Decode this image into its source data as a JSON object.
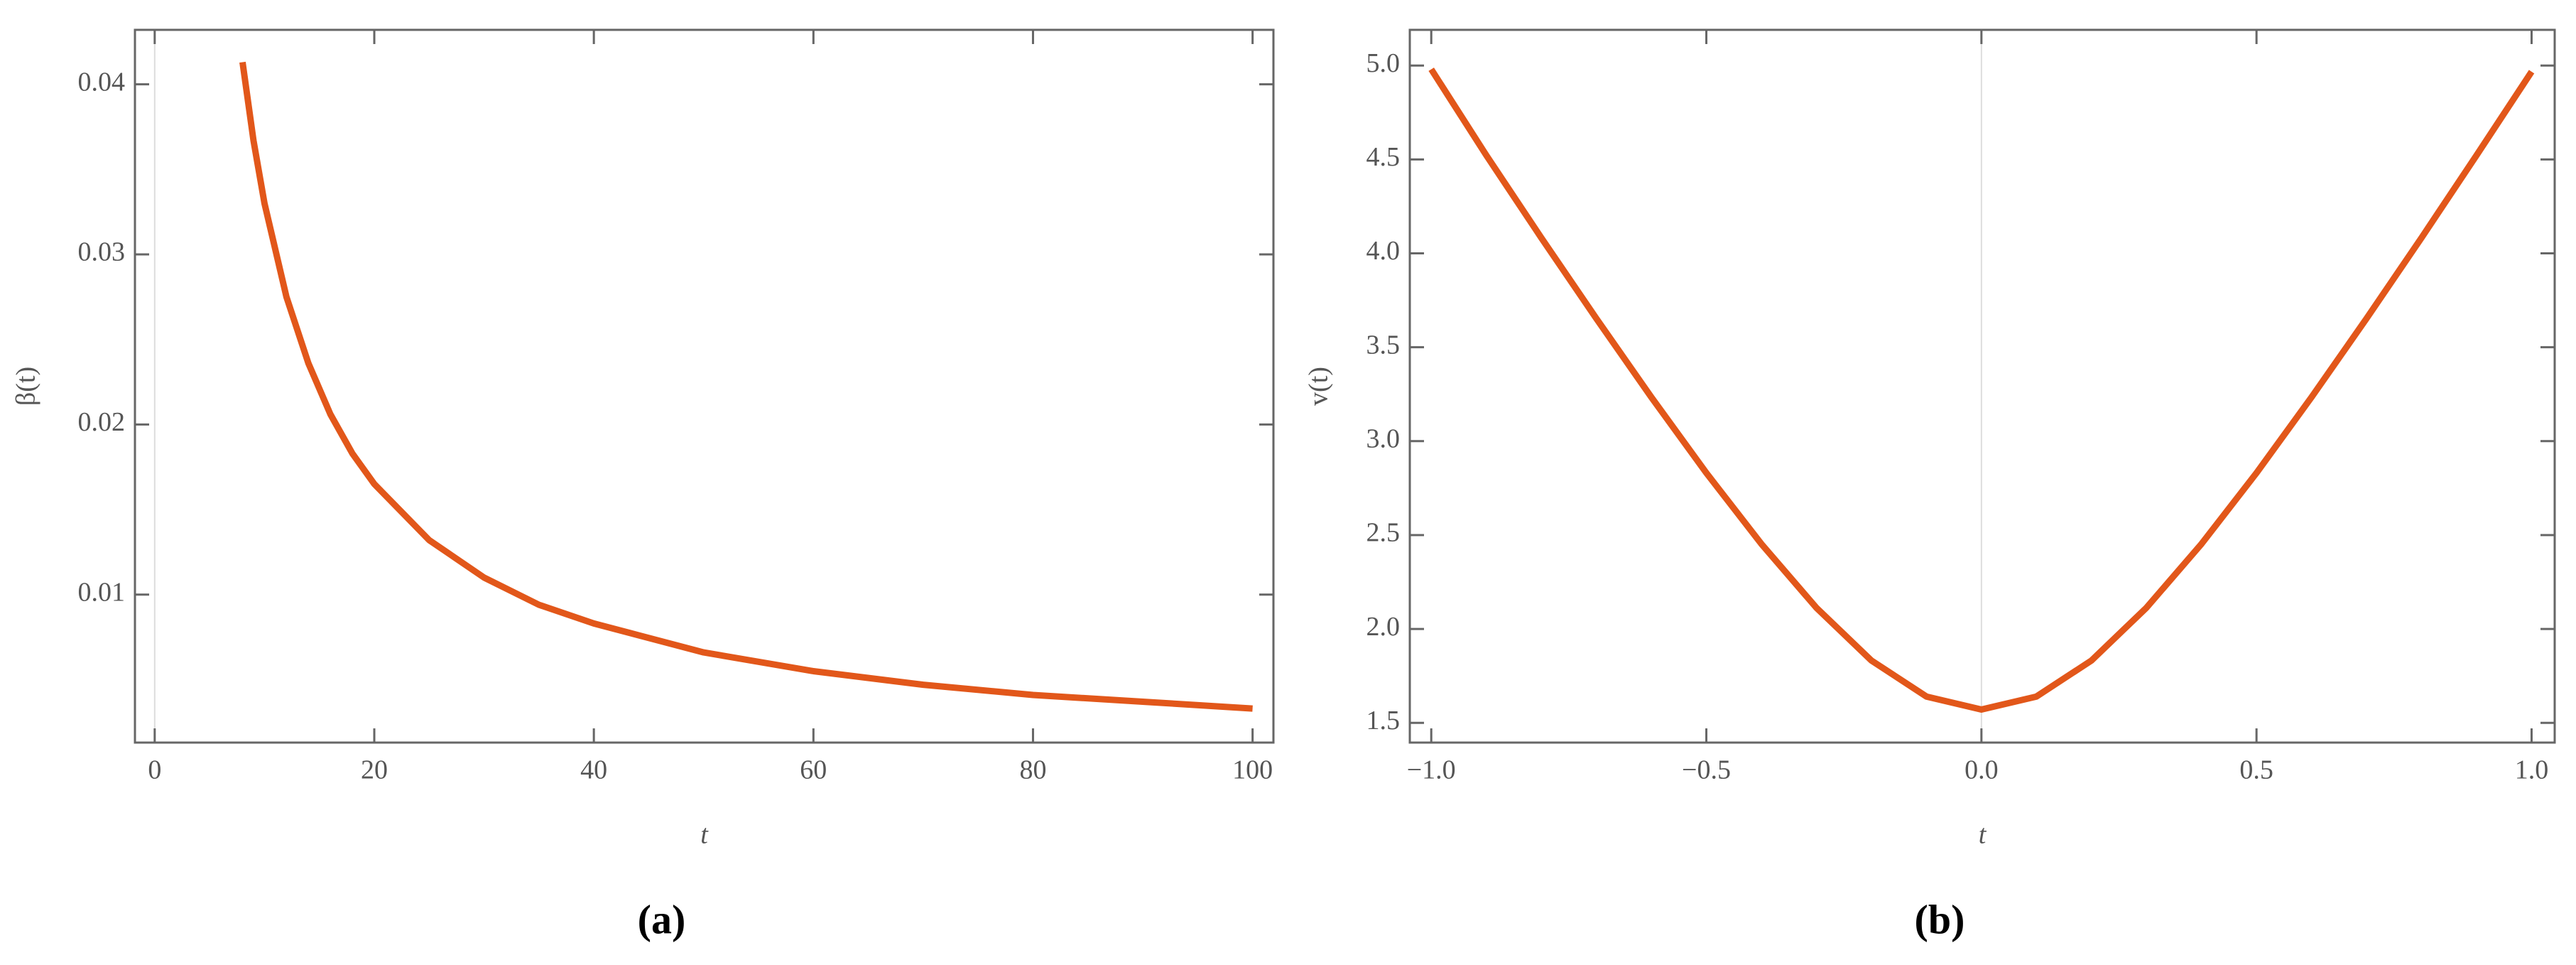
{
  "chart_data": [
    {
      "type": "line",
      "caption": "(a)",
      "x_label": "t",
      "y_label": "β(t)",
      "x": [
        8,
        9,
        10,
        12,
        14,
        16,
        18,
        20,
        25,
        30,
        35,
        40,
        50,
        60,
        70,
        80,
        90,
        100
      ],
      "series": [
        {
          "color": "#e2571a",
          "values": [
            0.0413,
            0.0367,
            0.033,
            0.0275,
            0.0236,
            0.0206,
            0.0183,
            0.0165,
            0.0132,
            0.011,
            0.0094,
            0.0083,
            0.0066,
            0.0055,
            0.0047,
            0.0041,
            0.0037,
            0.0033
          ]
        }
      ],
      "xlim": [
        -1.8,
        101.9
      ],
      "ylim": [
        0.0013,
        0.0432
      ],
      "xticks": [
        0,
        20,
        40,
        60,
        80,
        100
      ],
      "yticks": [
        0.01,
        0.02,
        0.03,
        0.04
      ],
      "grid": false
    },
    {
      "type": "line",
      "caption": "(b)",
      "x_label": "t",
      "y_label": "v(t)",
      "x": [
        -1,
        -0.9,
        -0.8,
        -0.7,
        -0.6,
        -0.5,
        -0.4,
        -0.3,
        -0.2,
        -0.1,
        0,
        0.1,
        0.2,
        0.3,
        0.4,
        0.5,
        0.6,
        0.7,
        0.8,
        0.9,
        1
      ],
      "series": [
        {
          "color": "#e2571a",
          "values": [
            4.98,
            4.522,
            4.083,
            3.653,
            3.234,
            2.831,
            2.453,
            2.113,
            1.832,
            1.64,
            1.571,
            1.64,
            1.832,
            2.113,
            2.453,
            2.831,
            3.234,
            3.653,
            4.083,
            4.522,
            4.967
          ]
        }
      ],
      "xlim": [
        -1.039,
        1.042
      ],
      "ylim": [
        1.395,
        5.19
      ],
      "xticks": [
        {
          "value": -1,
          "label": "−1.0"
        },
        {
          "value": -0.5,
          "label": "−0.5"
        },
        {
          "value": 0,
          "label": "0.0"
        },
        0.5,
        {
          "value": 1,
          "label": "1.0"
        }
      ],
      "yticks": [
        {
          "value": 1.5,
          "label": "1.5"
        },
        {
          "value": 2,
          "label": "2.0"
        },
        {
          "value": 2.5,
          "label": "2.5"
        },
        {
          "value": 3,
          "label": "3.0"
        },
        {
          "value": 3.5,
          "label": "3.5"
        },
        {
          "value": 4,
          "label": "4.0"
        },
        {
          "value": 4.5,
          "label": "4.5"
        },
        {
          "value": 5,
          "label": "5.0"
        }
      ],
      "grid": false
    }
  ]
}
